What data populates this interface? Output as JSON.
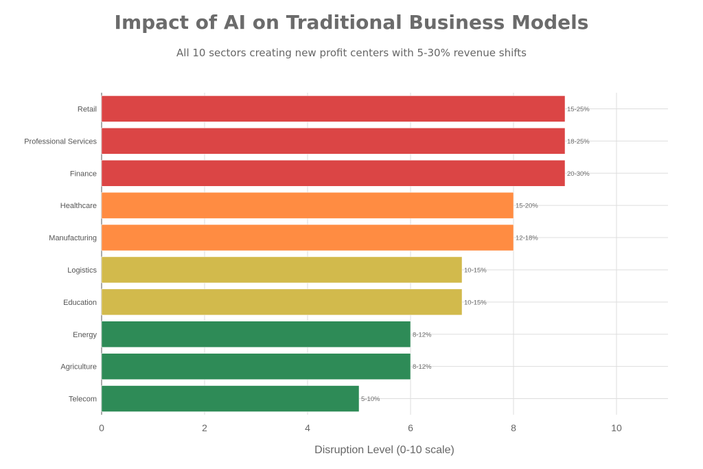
{
  "chart_data": {
    "type": "bar",
    "orientation": "horizontal",
    "title": "Impact of AI on Traditional Business Models",
    "subtitle": "All 10 sectors creating new profit centers with 5-30% revenue shifts",
    "xlabel": "Disruption Level (0-10 scale)",
    "ylabel": "",
    "xlim": [
      0,
      11
    ],
    "xticks": [
      0,
      2,
      4,
      6,
      8,
      10
    ],
    "grid": true,
    "categories": [
      "Retail",
      "Professional Services",
      "Finance",
      "Healthcare",
      "Manufacturing",
      "Logistics",
      "Education",
      "Energy",
      "Agriculture",
      "Telecom"
    ],
    "values": [
      9,
      9,
      9,
      8,
      8,
      7,
      7,
      6,
      6,
      5
    ],
    "data_labels": [
      "15-25%",
      "18-25%",
      "20-30%",
      "15-20%",
      "12-18%",
      "10-15%",
      "10-15%",
      "8-12%",
      "8-12%",
      "5-10%"
    ],
    "colors": {
      "9": "#db4545",
      "8": "#ff8c42",
      "7": "#d2ba4c",
      "6": "#2e8b57",
      "5": "#2e8b57"
    }
  }
}
